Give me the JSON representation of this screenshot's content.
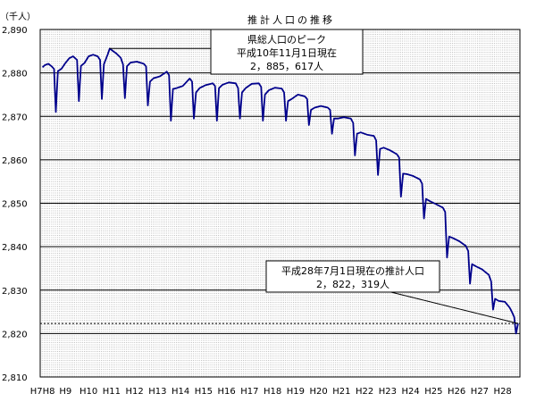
{
  "chart_data": {
    "type": "line",
    "title": "推計人口の推移",
    "y_unit_label": "（千人）",
    "ylim": [
      2810,
      2890
    ],
    "y_ticks": [
      "2,810",
      "2,820",
      "2,830",
      "2,840",
      "2,850",
      "2,860",
      "2,870",
      "2,880",
      "2,890"
    ],
    "grid": true,
    "x_tick_labels": [
      "H8",
      "H9",
      "H10",
      "H11",
      "H12",
      "H13",
      "H14",
      "H15",
      "H16",
      "H17",
      "H18",
      "H19",
      "H20",
      "H21",
      "H22",
      "H23",
      "H24",
      "H25",
      "H26",
      "H27",
      "H28"
    ],
    "x_first_label_prefix": "H7",
    "x_range": [
      1995.9,
      2016.75
    ],
    "series": [
      {
        "line_color": "#00008B",
        "points": [
          [
            1996.0,
            2881.3
          ],
          [
            1996.1,
            2881.8
          ],
          [
            1996.25,
            2882.1
          ],
          [
            1996.4,
            2881.5
          ],
          [
            1996.5,
            2880.9
          ],
          [
            1996.58,
            2871.0
          ],
          [
            1996.67,
            2880.4
          ],
          [
            1996.83,
            2881.0
          ],
          [
            1997.0,
            2882.3
          ],
          [
            1997.17,
            2883.4
          ],
          [
            1997.33,
            2883.8
          ],
          [
            1997.5,
            2883.0
          ],
          [
            1997.58,
            2873.5
          ],
          [
            1997.67,
            2881.6
          ],
          [
            1997.83,
            2882.3
          ],
          [
            1998.0,
            2883.8
          ],
          [
            1998.2,
            2884.2
          ],
          [
            1998.4,
            2883.8
          ],
          [
            1998.5,
            2883.0
          ],
          [
            1998.58,
            2874.0
          ],
          [
            1998.67,
            2882.0
          ],
          [
            1998.83,
            2884.2
          ],
          [
            1998.92,
            2885.6
          ],
          [
            1999.0,
            2885.3
          ],
          [
            1999.2,
            2884.5
          ],
          [
            1999.4,
            2883.5
          ],
          [
            1999.5,
            2882.0
          ],
          [
            1999.58,
            2874.2
          ],
          [
            1999.67,
            2881.5
          ],
          [
            1999.83,
            2882.4
          ],
          [
            2000.1,
            2882.6
          ],
          [
            2000.4,
            2882.1
          ],
          [
            2000.5,
            2881.5
          ],
          [
            2000.58,
            2872.5
          ],
          [
            2000.67,
            2878.0
          ],
          [
            2000.83,
            2878.8
          ],
          [
            2001.1,
            2879.2
          ],
          [
            2001.4,
            2880.3
          ],
          [
            2001.5,
            2879.5
          ],
          [
            2001.58,
            2869.0
          ],
          [
            2001.67,
            2876.3
          ],
          [
            2001.83,
            2876.5
          ],
          [
            2002.1,
            2877.0
          ],
          [
            2002.4,
            2878.7
          ],
          [
            2002.5,
            2878.0
          ],
          [
            2002.58,
            2869.5
          ],
          [
            2002.67,
            2875.5
          ],
          [
            2002.83,
            2876.5
          ],
          [
            2003.1,
            2877.2
          ],
          [
            2003.4,
            2877.6
          ],
          [
            2003.5,
            2877.0
          ],
          [
            2003.58,
            2869.0
          ],
          [
            2003.67,
            2876.5
          ],
          [
            2003.83,
            2877.3
          ],
          [
            2004.1,
            2877.8
          ],
          [
            2004.4,
            2877.6
          ],
          [
            2004.5,
            2876.5
          ],
          [
            2004.58,
            2869.5
          ],
          [
            2004.67,
            2875.5
          ],
          [
            2004.83,
            2876.5
          ],
          [
            2005.1,
            2877.5
          ],
          [
            2005.4,
            2877.6
          ],
          [
            2005.5,
            2876.8
          ],
          [
            2005.58,
            2869.0
          ],
          [
            2005.67,
            2875.0
          ],
          [
            2005.83,
            2876.0
          ],
          [
            2006.1,
            2876.6
          ],
          [
            2006.4,
            2876.4
          ],
          [
            2006.5,
            2875.5
          ],
          [
            2006.58,
            2869.0
          ],
          [
            2006.67,
            2873.5
          ],
          [
            2006.83,
            2874.0
          ],
          [
            2007.1,
            2875.0
          ],
          [
            2007.4,
            2874.6
          ],
          [
            2007.5,
            2874.0
          ],
          [
            2007.58,
            2868.0
          ],
          [
            2007.67,
            2871.5
          ],
          [
            2007.83,
            2872.0
          ],
          [
            2008.1,
            2872.4
          ],
          [
            2008.4,
            2872.0
          ],
          [
            2008.5,
            2871.5
          ],
          [
            2008.58,
            2866.0
          ],
          [
            2008.67,
            2869.5
          ],
          [
            2008.83,
            2869.5
          ],
          [
            2009.1,
            2869.8
          ],
          [
            2009.4,
            2869.5
          ],
          [
            2009.5,
            2868.5
          ],
          [
            2009.58,
            2861.0
          ],
          [
            2009.67,
            2866.0
          ],
          [
            2009.83,
            2866.3
          ],
          [
            2010.1,
            2865.8
          ],
          [
            2010.4,
            2865.5
          ],
          [
            2010.5,
            2864.5
          ],
          [
            2010.58,
            2856.5
          ],
          [
            2010.67,
            2862.5
          ],
          [
            2010.83,
            2862.8
          ],
          [
            2011.1,
            2862.2
          ],
          [
            2011.4,
            2861.3
          ],
          [
            2011.5,
            2860.5
          ],
          [
            2011.58,
            2851.5
          ],
          [
            2011.67,
            2856.8
          ],
          [
            2011.83,
            2856.7
          ],
          [
            2012.1,
            2856.3
          ],
          [
            2012.4,
            2855.5
          ],
          [
            2012.5,
            2854.5
          ],
          [
            2012.58,
            2846.5
          ],
          [
            2012.67,
            2851.0
          ],
          [
            2012.83,
            2850.5
          ],
          [
            2013.1,
            2849.8
          ],
          [
            2013.4,
            2849.0
          ],
          [
            2013.5,
            2848.0
          ],
          [
            2013.58,
            2837.5
          ],
          [
            2013.67,
            2842.3
          ],
          [
            2013.83,
            2842.0
          ],
          [
            2014.1,
            2841.3
          ],
          [
            2014.4,
            2840.2
          ],
          [
            2014.5,
            2839.0
          ],
          [
            2014.58,
            2831.5
          ],
          [
            2014.67,
            2836.0
          ],
          [
            2014.83,
            2835.5
          ],
          [
            2015.1,
            2834.8
          ],
          [
            2015.4,
            2833.5
          ],
          [
            2015.5,
            2832.0
          ],
          [
            2015.58,
            2825.5
          ],
          [
            2015.67,
            2828.0
          ],
          [
            2015.83,
            2827.5
          ],
          [
            2016.1,
            2827.3
          ],
          [
            2016.3,
            2826.0
          ],
          [
            2016.4,
            2825.0
          ],
          [
            2016.5,
            2823.8
          ],
          [
            2016.58,
            2820.0
          ],
          [
            2016.67,
            2822.3
          ]
        ]
      }
    ],
    "reference_line": {
      "value": 2822.319,
      "style": "dotted"
    },
    "annotations": [
      {
        "lines": [
          "県総人口のピーク",
          "平成10年11月1日現在",
          "2，885，617人"
        ],
        "point": [
          1998.92,
          2885.617
        ]
      },
      {
        "lines": [
          "平成28年7月1日現在の推計人口",
          "2，822，319人"
        ],
        "point": [
          2016.67,
          2822.319
        ]
      }
    ]
  }
}
